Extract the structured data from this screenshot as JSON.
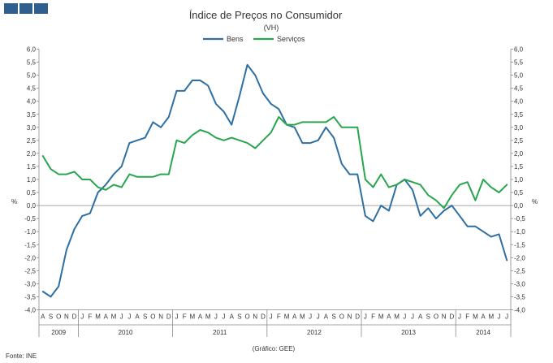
{
  "logo": {
    "color": "#2e5f8e"
  },
  "chart_data": {
    "type": "line",
    "title": "Índice de Preços no Consumidor",
    "subtitle": "(VH)",
    "ylabel_left": "%",
    "ylabel_right": "%",
    "ylim": [
      -4.0,
      6.0
    ],
    "y_ticks": [
      "6,0",
      "5,5",
      "5,0",
      "4,5",
      "4,0",
      "3,5",
      "3,0",
      "2,5",
      "2,0",
      "1,5",
      "1,0",
      "0,5",
      "0,0",
      "-0,5",
      "-1,0",
      "-1,5",
      "-2,0",
      "-2,5",
      "-3,0",
      "-3,5",
      "-4,0"
    ],
    "months": [
      "A",
      "S",
      "O",
      "N",
      "D",
      "J",
      "F",
      "M",
      "A",
      "M",
      "J",
      "J",
      "A",
      "S",
      "O",
      "N",
      "D",
      "J",
      "F",
      "M",
      "A",
      "M",
      "J",
      "J",
      "A",
      "S",
      "O",
      "N",
      "D",
      "J",
      "F",
      "M",
      "A",
      "M",
      "J",
      "J",
      "A",
      "S",
      "O",
      "N",
      "D",
      "J",
      "F",
      "M",
      "A",
      "M",
      "J",
      "J",
      "A",
      "S",
      "O",
      "N",
      "D",
      "J",
      "F",
      "M",
      "A",
      "M",
      "J",
      "J"
    ],
    "years": [
      {
        "label": "2009",
        "start": 0,
        "end": 5
      },
      {
        "label": "2010",
        "start": 5,
        "end": 17
      },
      {
        "label": "2011",
        "start": 17,
        "end": 29
      },
      {
        "label": "2012",
        "start": 29,
        "end": 41
      },
      {
        "label": "2013",
        "start": 41,
        "end": 53
      },
      {
        "label": "2014",
        "start": 53,
        "end": 60
      }
    ],
    "series": [
      {
        "name": "Bens",
        "color": "#2e6fa3",
        "values": [
          -3.3,
          -3.5,
          -3.1,
          -1.7,
          -0.9,
          -0.4,
          -0.3,
          0.5,
          0.8,
          1.2,
          1.5,
          2.4,
          2.5,
          2.6,
          3.2,
          3.0,
          3.4,
          4.4,
          4.4,
          4.8,
          4.8,
          4.6,
          3.9,
          3.6,
          3.1,
          4.2,
          5.4,
          5.0,
          4.3,
          3.9,
          3.7,
          3.1,
          3.0,
          2.4,
          2.4,
          2.5,
          3.0,
          2.6,
          1.6,
          1.2,
          1.2,
          -0.4,
          -0.6,
          0.0,
          -0.2,
          0.8,
          1.0,
          0.6,
          -0.4,
          -0.1,
          -0.5,
          -0.2,
          0.0,
          -0.4,
          -0.8,
          -0.8,
          -1.0,
          -1.2,
          -1.1,
          -2.1
        ]
      },
      {
        "name": "Serviços",
        "color": "#27a64e",
        "values": [
          1.9,
          1.4,
          1.2,
          1.2,
          1.3,
          1.0,
          1.0,
          0.7,
          0.6,
          0.8,
          0.7,
          1.2,
          1.1,
          1.1,
          1.1,
          1.2,
          1.2,
          2.5,
          2.4,
          2.7,
          2.9,
          2.8,
          2.6,
          2.5,
          2.6,
          2.5,
          2.4,
          2.2,
          2.5,
          2.8,
          3.4,
          3.1,
          3.1,
          3.2,
          3.2,
          3.2,
          3.2,
          3.4,
          3.0,
          3.0,
          3.0,
          1.0,
          0.7,
          1.2,
          0.7,
          0.8,
          1.0,
          0.9,
          0.8,
          0.4,
          0.2,
          -0.1,
          0.4,
          0.8,
          0.9,
          0.2,
          1.0,
          0.7,
          0.5,
          0.8
        ]
      }
    ],
    "footer_source": "Fonte: INE",
    "footer_credit": "(Gráfico: GEE)"
  }
}
